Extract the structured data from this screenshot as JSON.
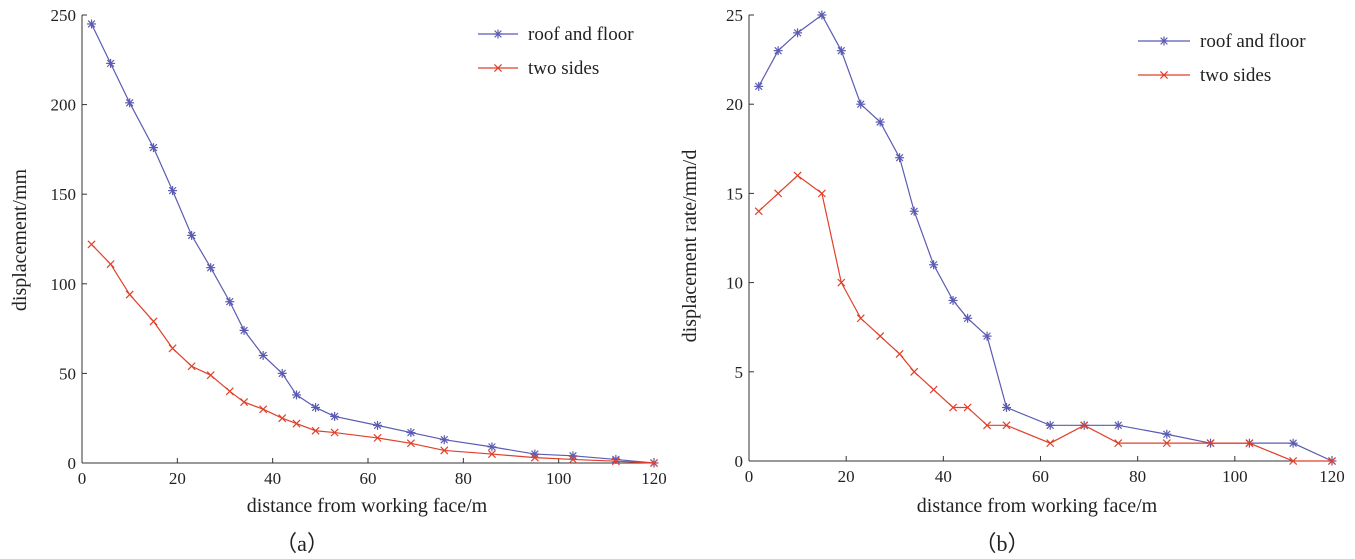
{
  "chart_data": [
    {
      "type": "line",
      "panel_label": "（a）",
      "xlabel": "distance from working face/m",
      "ylabel": "displacement/mm",
      "xlim": [
        0,
        120
      ],
      "ylim": [
        0,
        250
      ],
      "xticks": [
        0,
        20,
        40,
        60,
        80,
        100,
        120
      ],
      "yticks": [
        0,
        50,
        100,
        150,
        200,
        250
      ],
      "legend_position": "top-right",
      "series": [
        {
          "name": "roof and floor",
          "color": "#5b5bb3",
          "marker": "star",
          "x": [
            2,
            6,
            10,
            15,
            19,
            23,
            27,
            31,
            34,
            38,
            42,
            45,
            49,
            53,
            62,
            69,
            76,
            86,
            95,
            103,
            112,
            120
          ],
          "y": [
            245,
            223,
            201,
            176,
            152,
            127,
            109,
            90,
            74,
            60,
            50,
            38,
            31,
            26,
            21,
            17,
            13,
            9,
            5,
            4,
            2,
            0
          ]
        },
        {
          "name": "two sides",
          "color": "#e0402a",
          "marker": "x",
          "x": [
            2,
            6,
            10,
            15,
            19,
            23,
            27,
            31,
            34,
            38,
            42,
            45,
            49,
            53,
            62,
            69,
            76,
            86,
            95,
            103,
            112,
            120
          ],
          "y": [
            122,
            111,
            94,
            79,
            64,
            54,
            49,
            40,
            34,
            30,
            25,
            22,
            18,
            17,
            14,
            11,
            7,
            5,
            3,
            2,
            1,
            0
          ]
        }
      ]
    },
    {
      "type": "line",
      "panel_label": "（b）",
      "xlabel": "distance from working face/m",
      "ylabel": "displacement rate/mm/d",
      "xlim": [
        0,
        120
      ],
      "ylim": [
        0,
        25
      ],
      "xticks": [
        0,
        20,
        40,
        60,
        80,
        100,
        120
      ],
      "yticks": [
        0,
        5,
        10,
        15,
        20,
        25
      ],
      "legend_position": "top-right",
      "series": [
        {
          "name": "roof and floor",
          "color": "#5b5bb3",
          "marker": "star",
          "x": [
            2,
            6,
            10,
            15,
            19,
            23,
            27,
            31,
            34,
            38,
            42,
            45,
            49,
            53,
            62,
            69,
            76,
            86,
            95,
            103,
            112,
            120
          ],
          "y": [
            21,
            23,
            24,
            25,
            23,
            20,
            19,
            17,
            14,
            11,
            9,
            8,
            7,
            3,
            2,
            2,
            2,
            1.5,
            1,
            1,
            1,
            0
          ]
        },
        {
          "name": "two sides",
          "color": "#e0402a",
          "marker": "x",
          "x": [
            2,
            6,
            10,
            15,
            19,
            23,
            27,
            31,
            34,
            38,
            42,
            45,
            49,
            53,
            62,
            69,
            76,
            86,
            95,
            103,
            112,
            120
          ],
          "y": [
            14,
            15,
            16,
            15,
            10,
            8,
            7,
            6,
            5,
            4,
            3,
            3,
            2,
            2,
            1,
            2,
            1,
            1,
            1,
            1,
            0,
            0
          ]
        }
      ]
    }
  ]
}
